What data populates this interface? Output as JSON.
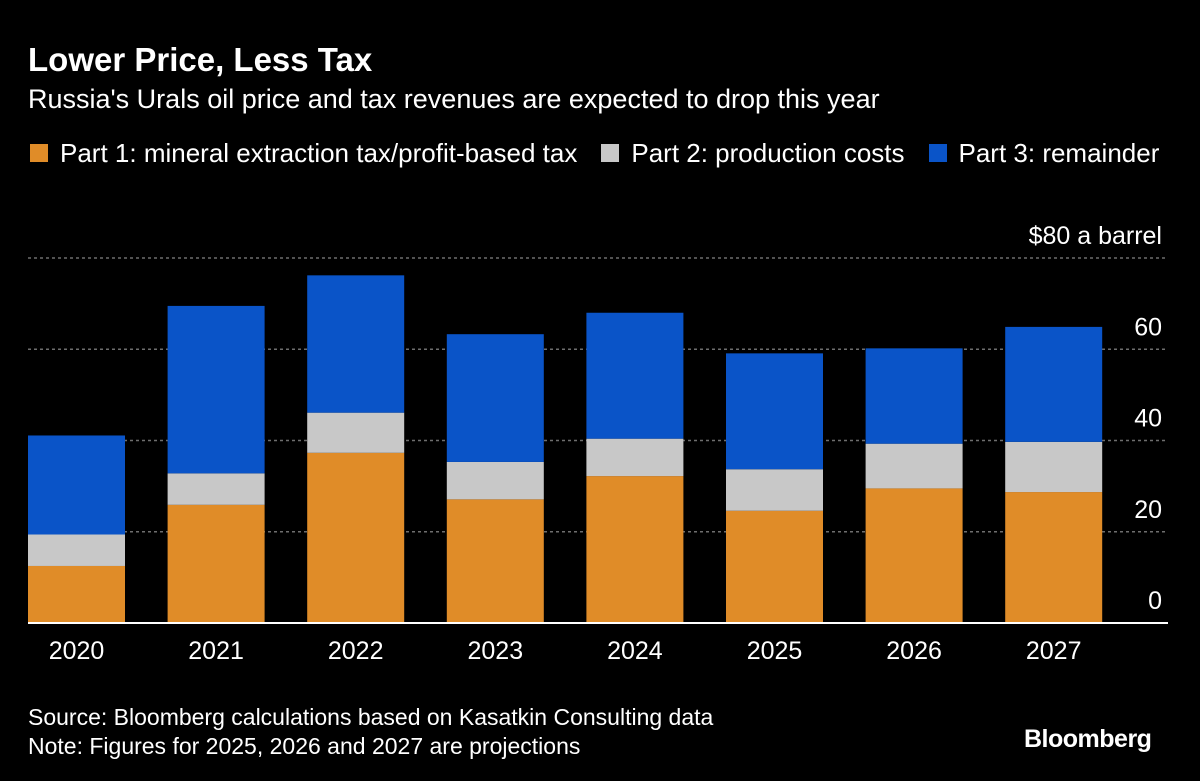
{
  "header": {
    "title": "Lower Price, Less Tax",
    "subtitle": "Russia's Urals oil price and tax revenues are expected to drop this year"
  },
  "legend": [
    {
      "label": "Part 1: mineral extraction tax/profit-based tax",
      "color": "#e08c28"
    },
    {
      "label": "Part 2: production costs",
      "color": "#c8c8c8"
    },
    {
      "label": "Part 3: remainder",
      "color": "#0a54c8"
    }
  ],
  "footer": {
    "source": "Source: Bloomberg calculations based on Kasatkin Consulting data",
    "note": "Note: Figures for 2025, 2026 and 2027 are projections",
    "brand": "Bloomberg"
  },
  "chart_data": {
    "type": "bar",
    "stacked": true,
    "categories": [
      "2020",
      "2021",
      "2022",
      "2023",
      "2024",
      "2025",
      "2026",
      "2027"
    ],
    "series": [
      {
        "name": "Part 1: mineral extraction tax/profit-based tax",
        "color": "#e08c28",
        "values": [
          12.5,
          25.9,
          37.3,
          27.1,
          32.2,
          24.6,
          29.5,
          28.7
        ]
      },
      {
        "name": "Part 2: production costs",
        "color": "#c8c8c8",
        "values": [
          6.9,
          6.9,
          8.8,
          8.2,
          8.2,
          9.1,
          9.8,
          11.0
        ]
      },
      {
        "name": "Part 3: remainder",
        "color": "#0a54c8",
        "values": [
          21.7,
          36.7,
          30.1,
          28.0,
          27.6,
          25.4,
          20.9,
          25.2
        ]
      }
    ],
    "y_ticks": [
      {
        "value": 0,
        "label": "0"
      },
      {
        "value": 20,
        "label": "20"
      },
      {
        "value": 40,
        "label": "40"
      },
      {
        "value": 60,
        "label": "60"
      },
      {
        "value": 80,
        "label": "$80 a barrel"
      }
    ],
    "ylim": [
      0,
      80
    ],
    "grid": true,
    "legend_position": "top-left",
    "colors": {
      "gridline": "#6e6e6e",
      "baseline": "#ffffff",
      "axis_text": "#ffffff"
    }
  }
}
